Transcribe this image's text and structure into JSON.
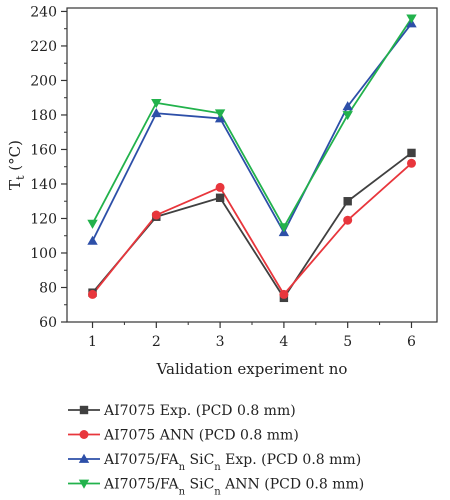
{
  "chart_data": {
    "type": "line",
    "x": [
      1,
      2,
      3,
      4,
      5,
      6
    ],
    "xlabel": "Validation experiment no",
    "ylabel": "Tt (°C)",
    "ylabel_main": "T",
    "ylabel_sub": "t",
    "ylabel_rest": " (°C)",
    "xlim": [
      0.6,
      6.4
    ],
    "ylim": [
      60,
      242
    ],
    "xticks": [
      1,
      2,
      3,
      4,
      5,
      6
    ],
    "yticks": [
      60,
      80,
      100,
      120,
      140,
      160,
      180,
      200,
      220,
      240
    ],
    "grid": false,
    "legend_position": "bottom",
    "series": [
      {
        "name": "AI7075 Exp. (PCD 0.8 mm)",
        "name_parts": [
          {
            "t": "AI7075 Exp. (PCD 0.8 mm)"
          }
        ],
        "values": [
          77,
          121,
          132,
          74,
          130,
          158
        ],
        "color": "#404040",
        "marker": "square"
      },
      {
        "name": "AI7075 ANN (PCD 0.8 mm)",
        "name_parts": [
          {
            "t": "AI7075 ANN (PCD 0.8 mm)"
          }
        ],
        "values": [
          76,
          122,
          138,
          76,
          119,
          152
        ],
        "color": "#e8363c",
        "marker": "circle"
      },
      {
        "name": "AI7075/FAn SiCn Exp. (PCD 0.8 mm)",
        "name_parts": [
          {
            "t": "AI7075/FA"
          },
          {
            "t": "n",
            "sub": true
          },
          {
            "t": " SiC"
          },
          {
            "t": "n",
            "sub": true
          },
          {
            "t": " Exp. (PCD 0.8 mm)"
          }
        ],
        "values": [
          107,
          181,
          178,
          112,
          185,
          233
        ],
        "color": "#2d4fa8",
        "marker": "triangle-up"
      },
      {
        "name": "AI7075/FAn SiCn ANN (PCD 0.8 mm)",
        "name_parts": [
          {
            "t": "AI7075/FA"
          },
          {
            "t": "n",
            "sub": true
          },
          {
            "t": " SiC"
          },
          {
            "t": "n",
            "sub": true
          },
          {
            "t": " ANN (PCD 0.8 mm)"
          }
        ],
        "values": [
          117,
          187,
          181,
          115,
          180,
          236
        ],
        "color": "#22b24c",
        "marker": "triangle-down"
      }
    ]
  }
}
